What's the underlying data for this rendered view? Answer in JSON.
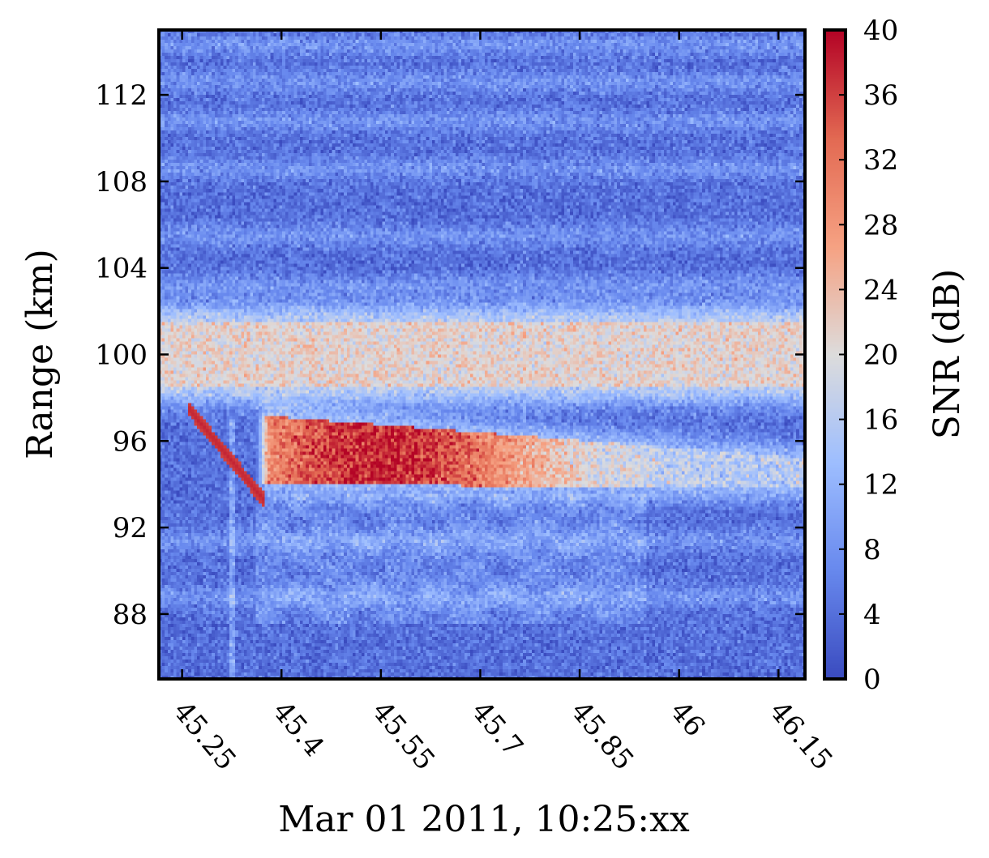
{
  "chart_data": {
    "type": "heatmap",
    "title": "",
    "xlabel": "Mar 01 2011, 10:25:xx",
    "ylabel": "Range (km)",
    "colorbar_label": "SNR (dB)",
    "xlim": [
      45.215,
      46.19
    ],
    "ylim": [
      85.0,
      115.0
    ],
    "clim": [
      0,
      40
    ],
    "x_ticks": [
      "45.25",
      "45.4",
      "45.55",
      "45.7",
      "45.85",
      "46",
      "46.15"
    ],
    "x_tick_values": [
      45.25,
      45.4,
      45.55,
      45.7,
      45.85,
      46.0,
      46.15
    ],
    "y_ticks": [
      "88",
      "92",
      "96",
      "100",
      "104",
      "108",
      "112"
    ],
    "y_tick_values": [
      88,
      92,
      96,
      100,
      104,
      108,
      112
    ],
    "colorbar_ticks": [
      "0",
      "4",
      "8",
      "12",
      "16",
      "20",
      "24",
      "28",
      "32",
      "36",
      "40"
    ],
    "colorbar_tick_values": [
      0,
      4,
      8,
      12,
      16,
      20,
      24,
      28,
      32,
      36,
      40
    ],
    "colormap": [
      "#3b4cc0",
      "#6889ee",
      "#9ebeff",
      "#dddcdc",
      "#f6a283",
      "#e36a53",
      "#b40426"
    ],
    "grid": false,
    "features": [
      {
        "name": "upper echo layer",
        "x_range": [
          45.215,
          46.19
        ],
        "range_km": [
          98.5,
          101.5
        ],
        "snr_db": 24
      },
      {
        "name": "meteor head echo",
        "x_start": 45.26,
        "x_end": 45.375,
        "range_start_km": 97.5,
        "range_end_km": 93.2,
        "snr_db": 38
      },
      {
        "name": "trail echo",
        "x_range": [
          45.36,
          46.19
        ],
        "range_km_start": [
          94.0,
          97.2
        ],
        "range_km_end": [
          93.8,
          95.2
        ],
        "snr_db_peak": 36
      }
    ]
  }
}
